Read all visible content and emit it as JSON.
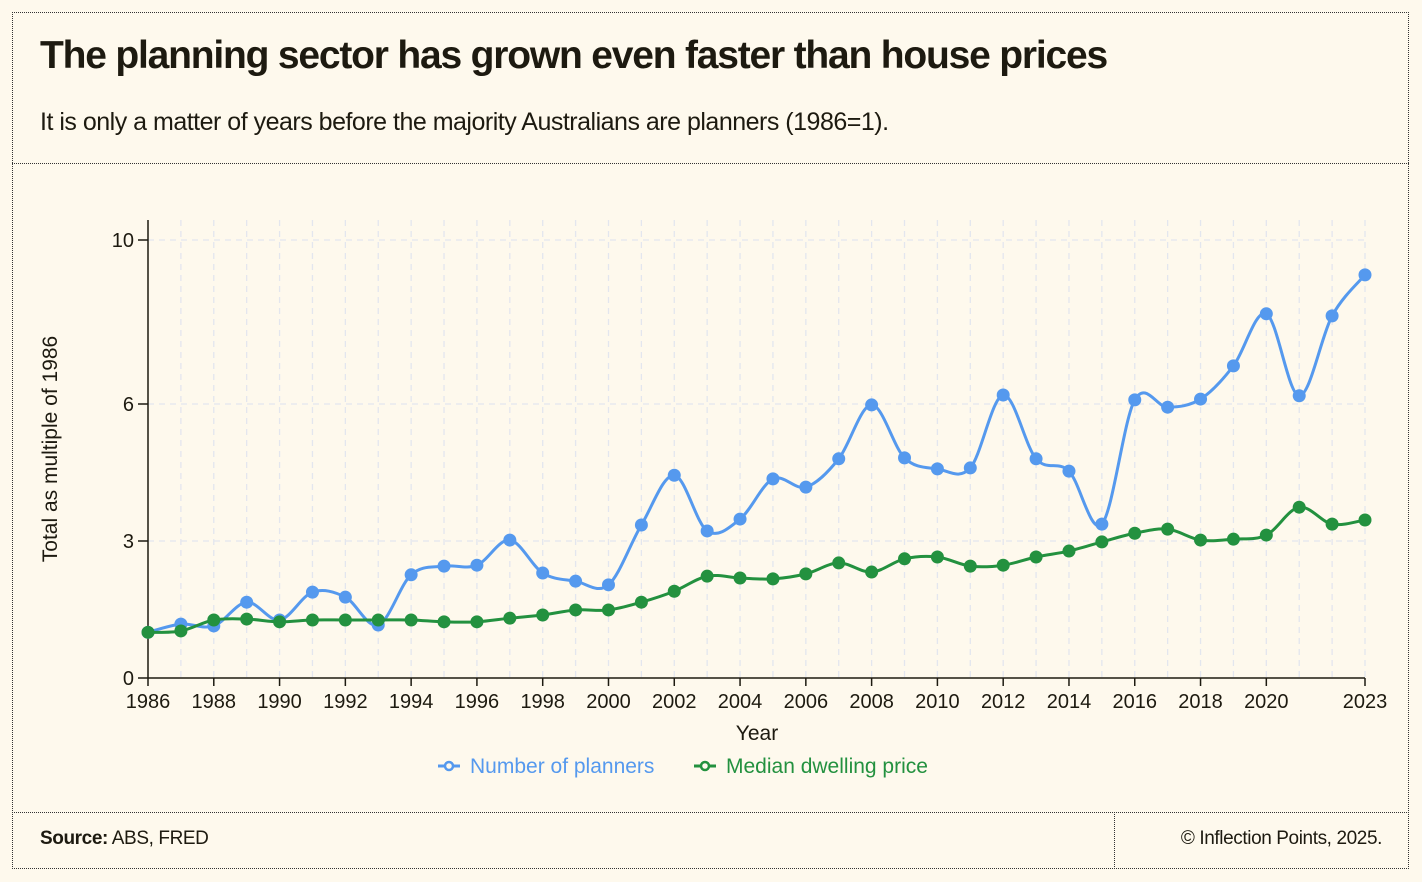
{
  "header": {
    "title": "The planning sector has grown even faster than house prices",
    "subtitle": "It is only a matter of years before the majority Australians are planners (1986=1)."
  },
  "footer": {
    "source_label": "Source:",
    "source_text": " ABS, FRED",
    "copyright": "© Inflection Points, 2025."
  },
  "chart_data": {
    "type": "line",
    "title": "The planning sector has grown even faster than house prices",
    "xlabel": "Year",
    "ylabel": "Total as multiple of 1986",
    "x": [
      1986,
      1987,
      1988,
      1989,
      1990,
      1991,
      1992,
      1993,
      1994,
      1995,
      1996,
      1997,
      1998,
      1999,
      2000,
      2001,
      2002,
      2003,
      2004,
      2005,
      2006,
      2007,
      2008,
      2009,
      2010,
      2011,
      2012,
      2013,
      2014,
      2015,
      2016,
      2017,
      2018,
      2019,
      2020,
      2021,
      2022,
      2023
    ],
    "x_ticks": [
      "1986",
      "1988",
      "1990",
      "1992",
      "1994",
      "1996",
      "1998",
      "2000",
      "2002",
      "2004",
      "2006",
      "2008",
      "2010",
      "2012",
      "2014",
      "2016",
      "2018",
      "2020",
      "2023"
    ],
    "y_ticks": [
      "0",
      "3",
      "6",
      "10"
    ],
    "ylim": [
      0,
      10
    ],
    "grid": true,
    "legend_position": "bottom-center",
    "series": [
      {
        "name": "Number of planners",
        "color": "#5599ee",
        "values": [
          1.0,
          1.18,
          1.14,
          1.66,
          1.27,
          1.88,
          1.77,
          1.16,
          2.26,
          2.45,
          2.47,
          3.02,
          2.3,
          2.12,
          2.04,
          3.35,
          4.44,
          3.22,
          3.48,
          4.36,
          4.18,
          4.8,
          5.98,
          4.82,
          4.58,
          4.6,
          6.22,
          4.8,
          4.53,
          3.37,
          6.1,
          5.93,
          6.12,
          6.93,
          8.2,
          6.2,
          8.15,
          9.15
        ]
      },
      {
        "name": "Median dwelling price",
        "color": "#23913f",
        "values": [
          1.0,
          1.03,
          1.27,
          1.29,
          1.23,
          1.27,
          1.27,
          1.27,
          1.27,
          1.23,
          1.23,
          1.31,
          1.38,
          1.49,
          1.49,
          1.66,
          1.9,
          2.23,
          2.19,
          2.17,
          2.28,
          2.52,
          2.32,
          2.61,
          2.65,
          2.45,
          2.47,
          2.65,
          2.78,
          2.98,
          3.17,
          3.26,
          3.02,
          3.04,
          3.13,
          3.74,
          3.37,
          3.46
        ]
      }
    ]
  }
}
